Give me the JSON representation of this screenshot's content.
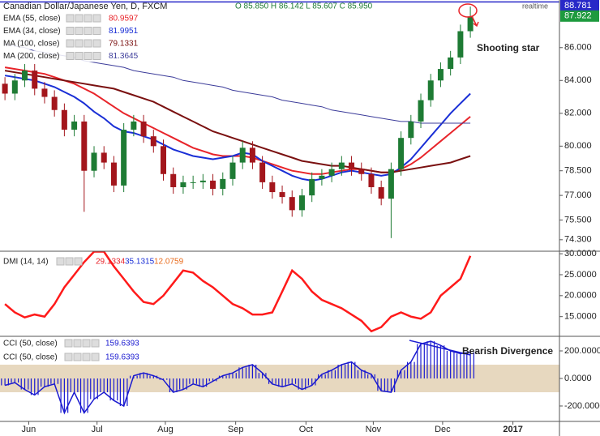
{
  "chart_data": [
    {
      "type": "candlestick",
      "title": "Canadian Dollar/Japanese Yen, D, FXCM",
      "ohlc_text": "O 85.850 H 86.142 L 85.607 C 85.950",
      "realtime": "realtime",
      "up_color": "#1e7b34",
      "down_color": "#a3161c",
      "xlim": [
        -0.5,
        56
      ],
      "ylim": [
        73.6,
        88.9
      ],
      "yticks": [
        {
          "value": 86,
          "label": "86.000"
        },
        {
          "value": 84,
          "label": "84.000"
        },
        {
          "value": 82,
          "label": "82.000"
        },
        {
          "value": 80,
          "label": "80.000"
        },
        {
          "value": 78.5,
          "label": "78.500"
        },
        {
          "value": 77,
          "label": "77.000"
        },
        {
          "value": 75.5,
          "label": "75.500"
        },
        {
          "value": 74.3,
          "label": "74.300"
        }
      ],
      "price_lines": [
        {
          "value": 88.781,
          "label": "88.781",
          "color": "#2828c8",
          "line": true
        },
        {
          "value": 87.922,
          "label": "87.922",
          "color": "#1e9a3e",
          "line": false
        }
      ],
      "open": [
        83.8,
        83.2,
        84.0,
        84.6,
        83.5,
        83.0,
        82.2,
        81.0,
        81.5,
        78.5,
        79.6,
        79.0,
        77.6,
        81.0,
        81.5,
        80.6,
        80.0,
        78.3,
        77.5,
        77.8,
        77.8,
        77.9,
        77.4,
        78.0,
        79.0,
        79.9,
        79.0,
        77.8,
        77.2,
        76.9,
        76.1,
        77.0,
        78.0,
        78.2,
        78.6,
        79.0,
        78.6,
        78.3,
        77.5,
        76.8,
        78.6,
        80.5,
        81.5,
        82.8,
        84.0,
        84.7,
        85.4,
        87.0
      ],
      "high": [
        84.2,
        84.4,
        85.0,
        85.0,
        83.9,
        83.4,
        82.6,
        81.9,
        81.9,
        80.0,
        80.0,
        79.4,
        81.4,
        81.9,
        81.9,
        81.0,
        80.4,
        78.7,
        78.2,
        78.2,
        78.3,
        78.3,
        78.4,
        79.4,
        80.3,
        80.3,
        79.4,
        78.2,
        77.6,
        77.3,
        77.4,
        78.4,
        78.6,
        79.0,
        79.4,
        79.4,
        79.0,
        78.7,
        77.9,
        79.0,
        80.9,
        81.9,
        83.2,
        84.4,
        85.1,
        85.8,
        87.4,
        88.5
      ],
      "low": [
        82.8,
        82.8,
        83.6,
        83.1,
        82.6,
        81.8,
        80.6,
        80.6,
        76.0,
        78.1,
        78.6,
        77.2,
        77.2,
        80.6,
        80.2,
        79.6,
        77.9,
        77.1,
        77.1,
        77.4,
        77.4,
        77.0,
        77.0,
        77.6,
        78.6,
        78.6,
        77.4,
        76.8,
        76.5,
        75.7,
        75.7,
        76.6,
        77.6,
        77.8,
        78.2,
        78.2,
        77.9,
        77.1,
        76.4,
        74.4,
        78.2,
        80.1,
        81.1,
        82.4,
        83.6,
        84.3,
        85.0,
        86.6
      ],
      "close": [
        83.2,
        84.0,
        84.6,
        83.5,
        83.0,
        82.2,
        81.0,
        81.5,
        78.5,
        79.6,
        79.0,
        77.6,
        81.0,
        81.5,
        80.6,
        80.0,
        78.3,
        77.5,
        77.8,
        77.8,
        77.9,
        77.4,
        78.0,
        79.0,
        79.9,
        79.0,
        77.8,
        77.2,
        76.9,
        76.1,
        77.0,
        78.0,
        78.2,
        78.6,
        79.0,
        78.6,
        78.3,
        77.5,
        76.8,
        78.6,
        80.5,
        81.5,
        82.8,
        84.0,
        84.7,
        85.4,
        87.0,
        87.9
      ],
      "series": [
        {
          "name": "EMA (55, close)",
          "legend_value": 80.9597,
          "color": "#e8242a",
          "width": 2,
          "values": [
            84.8,
            84.7,
            84.6,
            84.5,
            84.4,
            84.2,
            84.0,
            83.8,
            83.5,
            83.2,
            82.8,
            82.4,
            82.0,
            81.7,
            81.4,
            81.1,
            80.8,
            80.5,
            80.2,
            79.9,
            79.7,
            79.5,
            79.4,
            79.4,
            79.4,
            79.3,
            79.1,
            78.9,
            78.7,
            78.5,
            78.4,
            78.3,
            78.3,
            78.4,
            78.5,
            78.6,
            78.6,
            78.5,
            78.4,
            78.4,
            78.6,
            78.9,
            79.3,
            79.8,
            80.3,
            80.8,
            81.3,
            81.8
          ]
        },
        {
          "name": "EMA (34, close)",
          "legend_value": 81.9951,
          "color": "#1a2fd6",
          "width": 2,
          "values": [
            84.3,
            84.2,
            84.1,
            84.0,
            83.8,
            83.6,
            83.3,
            83.0,
            82.6,
            82.1,
            81.7,
            81.2,
            80.9,
            80.8,
            80.6,
            80.4,
            80.1,
            79.8,
            79.6,
            79.4,
            79.3,
            79.2,
            79.3,
            79.4,
            79.6,
            79.5,
            79.1,
            78.8,
            78.5,
            78.2,
            78.0,
            77.9,
            78.0,
            78.2,
            78.4,
            78.5,
            78.4,
            78.3,
            78.2,
            78.3,
            78.7,
            79.2,
            79.9,
            80.6,
            81.3,
            82.0,
            82.6,
            83.2
          ]
        },
        {
          "name": "MA (100, close)",
          "legend_value": 79.1331,
          "color": "#7a1010",
          "width": 2,
          "values": [
            84.6,
            84.5,
            84.4,
            84.3,
            84.2,
            84.1,
            84.0,
            83.9,
            83.8,
            83.7,
            83.6,
            83.5,
            83.3,
            83.1,
            82.9,
            82.7,
            82.4,
            82.1,
            81.8,
            81.5,
            81.2,
            80.9,
            80.7,
            80.5,
            80.3,
            80.1,
            79.9,
            79.7,
            79.5,
            79.3,
            79.1,
            79.0,
            78.9,
            78.8,
            78.8,
            78.7,
            78.6,
            78.5,
            78.4,
            78.4,
            78.5,
            78.6,
            78.7,
            78.8,
            78.9,
            79.0,
            79.2,
            79.4
          ]
        },
        {
          "name": "MA (200, close)",
          "legend_value": 81.3645,
          "color": "#3c3c9a",
          "width": 1,
          "values": [
            86.2,
            86.1,
            86.0,
            85.8,
            85.7,
            85.6,
            85.5,
            85.4,
            85.2,
            85.1,
            85.0,
            84.9,
            84.8,
            84.6,
            84.5,
            84.4,
            84.3,
            84.2,
            84.0,
            83.9,
            83.8,
            83.7,
            83.6,
            83.4,
            83.3,
            83.2,
            83.1,
            83.0,
            82.8,
            82.7,
            82.6,
            82.5,
            82.4,
            82.2,
            82.1,
            82.0,
            81.9,
            81.8,
            81.7,
            81.6,
            81.5,
            81.5,
            81.4,
            81.4,
            81.4,
            81.4,
            81.4,
            81.4
          ]
        }
      ],
      "annotation": "Shooting star"
    },
    {
      "type": "line",
      "name": "DMI (14, 14)",
      "legend_values": [
        29.1334,
        35.1315,
        12.0759
      ],
      "legend_colors": [
        "#e8242a",
        "#1a2fd6",
        "#e86a1a"
      ],
      "xlim": [
        -0.5,
        56
      ],
      "ylim": [
        10.3,
        30.6
      ],
      "yticks": [
        {
          "value": 30,
          "label": "30.0000"
        },
        {
          "value": 25,
          "label": "25.0000"
        },
        {
          "value": 20,
          "label": "20.0000"
        },
        {
          "value": 15,
          "label": "15.0000"
        }
      ],
      "color": "#ff1a1a",
      "values": [
        18,
        16,
        14.8,
        15.5,
        15,
        18,
        22,
        25,
        28,
        30.5,
        30.5,
        27,
        24,
        21,
        18.5,
        18,
        20,
        23,
        26,
        25.5,
        23.5,
        22,
        20,
        18,
        17,
        15.5,
        15.5,
        16,
        21,
        26,
        24,
        21,
        19,
        18,
        17,
        15.5,
        14,
        11.5,
        12.5,
        15,
        16,
        15,
        14.5,
        16,
        20,
        22,
        24,
        29.5
      ]
    },
    {
      "type": "histogram_line",
      "names": [
        "CCI (50, close)",
        "CCI (50, close)"
      ],
      "legend_value": 159.6393,
      "color": "#1a1ad0",
      "band": [
        -100,
        100
      ],
      "band_color": "#e7d8bf",
      "xlim": [
        -0.5,
        56
      ],
      "ylim": [
        -312,
        306
      ],
      "yticks": [
        {
          "value": 200,
          "label": "200.0000"
        },
        {
          "value": 0,
          "label": "0.0000"
        },
        {
          "value": -200,
          "label": "-200.0000"
        }
      ],
      "values": [
        -50,
        -30,
        -80,
        -120,
        -60,
        -40,
        -250,
        -100,
        -250,
        -150,
        -100,
        -160,
        -200,
        20,
        40,
        20,
        -10,
        -100,
        -80,
        -40,
        -60,
        -20,
        20,
        40,
        80,
        100,
        40,
        -40,
        -60,
        -40,
        -80,
        -50,
        30,
        60,
        100,
        120,
        60,
        30,
        -90,
        -100,
        60,
        120,
        250,
        270,
        240,
        200,
        180,
        190
      ],
      "xticks": [
        {
          "value": 2.4,
          "label": "Jun"
        },
        {
          "value": 9.3,
          "label": "Jul"
        },
        {
          "value": 16.2,
          "label": "Aug"
        },
        {
          "value": 23.3,
          "label": "Sep"
        },
        {
          "value": 30.4,
          "label": "Oct"
        },
        {
          "value": 37.2,
          "label": "Nov"
        },
        {
          "value": 44.2,
          "label": "Dec"
        },
        {
          "value": 51.3,
          "label": "2017"
        }
      ],
      "annotation": "Bearish Divergence"
    }
  ]
}
